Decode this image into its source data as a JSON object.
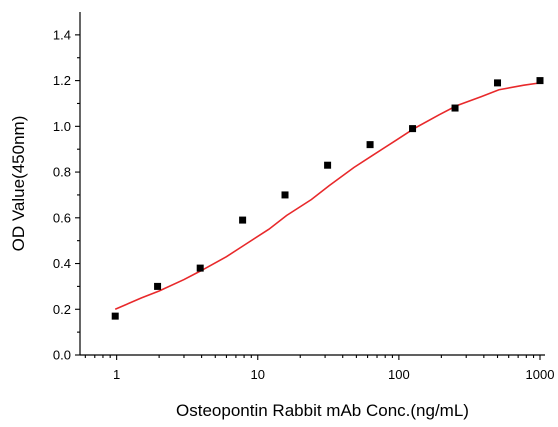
{
  "chart_data": {
    "type": "scatter",
    "title": "",
    "xlabel": "Osteopontin Rabbit mAb Conc.(ng/mL)",
    "ylabel": "OD Value(450nm)",
    "x_scale": "log",
    "xlim": [
      0.55,
      1000
    ],
    "ylim": [
      0,
      1.5
    ],
    "x_ticks": [
      1,
      10,
      100,
      1000
    ],
    "x_tick_labels": [
      "1",
      "10",
      "100",
      "1000"
    ],
    "y_ticks": [
      0.0,
      0.2,
      0.4,
      0.6,
      0.8,
      1.0,
      1.2,
      1.4
    ],
    "y_tick_labels": [
      "0.0",
      "0.2",
      "0.4",
      "0.6",
      "0.8",
      "1.0",
      "1.2",
      "1.4"
    ],
    "grid": false,
    "legend": "none",
    "series": [
      {
        "kind": "points",
        "color": "#000000",
        "x": [
          0.977,
          1.95,
          3.91,
          7.81,
          15.6,
          31.25,
          62.5,
          125,
          250,
          500,
          1000
        ],
        "y": [
          0.17,
          0.3,
          0.38,
          0.59,
          0.7,
          0.83,
          0.92,
          0.99,
          1.08,
          1.19,
          1.2
        ]
      },
      {
        "kind": "fit-line",
        "color": "#e8292b",
        "x": [
          0.977,
          1.5,
          2,
          3,
          4,
          6,
          8,
          12,
          16,
          24,
          32,
          48,
          64,
          96,
          128,
          192,
          256,
          384,
          512,
          768,
          1000
        ],
        "y": [
          0.2,
          0.25,
          0.28,
          0.33,
          0.37,
          0.43,
          0.48,
          0.55,
          0.61,
          0.68,
          0.74,
          0.82,
          0.87,
          0.94,
          0.99,
          1.05,
          1.09,
          1.13,
          1.16,
          1.18,
          1.19
        ]
      }
    ]
  }
}
